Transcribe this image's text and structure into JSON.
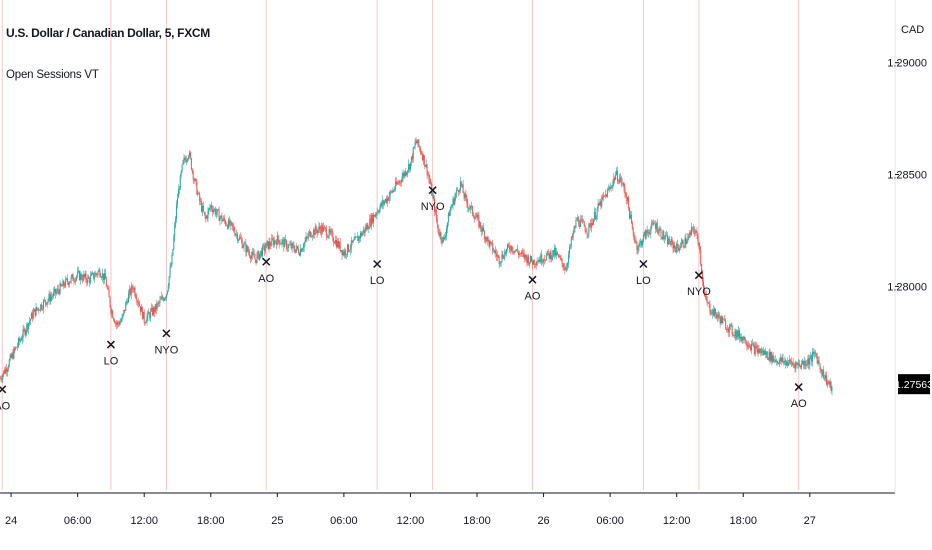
{
  "header": {
    "title": "U.S. Dollar / Canadian Dollar, 5, FXCM",
    "indicator": "Open Sessions VT",
    "currency": "CAD"
  },
  "colors": {
    "up": "#26a69a",
    "down": "#ef5350",
    "session_line": "#f7c6c6",
    "marker": "#131722",
    "axis": "#131722",
    "price_tag_bg": "#000000",
    "price_tag_text": "#ffffff"
  },
  "chart_data": {
    "type": "candlestick",
    "title": "U.S. Dollar / Canadian Dollar, 5, FXCM",
    "x_tick_labels": [
      "24",
      "06:00",
      "12:00",
      "18:00",
      "25",
      "06:00",
      "12:00",
      "18:00",
      "26",
      "06:00",
      "12:00",
      "18:00",
      "27"
    ],
    "x_ticks_hours": [
      0,
      6,
      12,
      18,
      24,
      30,
      36,
      42,
      48,
      54,
      60,
      66,
      72
    ],
    "x_range_hours": [
      -1.0,
      79.5
    ],
    "y_tick_labels": [
      "1.29000",
      "1.28500",
      "1.28000"
    ],
    "y_ticks": [
      1.29,
      1.285,
      1.28
    ],
    "ylim": [
      1.2709,
      1.2928
    ],
    "last_price": "1.27563",
    "last_price_value": 1.27563,
    "grid": false,
    "price_path": [
      [
        -1.0,
        1.2759
      ],
      [
        -0.5,
        1.2763
      ],
      [
        0.0,
        1.2768
      ],
      [
        1.0,
        1.2778
      ],
      [
        2.0,
        1.2788
      ],
      [
        3.0,
        1.2793
      ],
      [
        4.0,
        1.2797
      ],
      [
        5.0,
        1.2802
      ],
      [
        6.0,
        1.2805
      ],
      [
        7.0,
        1.2803
      ],
      [
        8.0,
        1.2807
      ],
      [
        8.5,
        1.2803
      ],
      [
        9.0,
        1.279
      ],
      [
        9.5,
        1.2783
      ],
      [
        10.0,
        1.2785
      ],
      [
        10.5,
        1.2795
      ],
      [
        11.0,
        1.28
      ],
      [
        11.5,
        1.2793
      ],
      [
        12.0,
        1.2785
      ],
      [
        13.0,
        1.279
      ],
      [
        14.0,
        1.2797
      ],
      [
        14.5,
        1.2812
      ],
      [
        15.0,
        1.284
      ],
      [
        15.5,
        1.2855
      ],
      [
        16.0,
        1.286
      ],
      [
        16.5,
        1.2848
      ],
      [
        17.0,
        1.2838
      ],
      [
        17.5,
        1.283
      ],
      [
        18.0,
        1.2836
      ],
      [
        19.0,
        1.283
      ],
      [
        20.0,
        1.2826
      ],
      [
        21.0,
        1.2818
      ],
      [
        22.0,
        1.2812
      ],
      [
        23.0,
        1.2818
      ],
      [
        24.0,
        1.2821
      ],
      [
        25.0,
        1.2818
      ],
      [
        26.0,
        1.2816
      ],
      [
        27.0,
        1.2824
      ],
      [
        28.0,
        1.2826
      ],
      [
        29.0,
        1.2822
      ],
      [
        30.0,
        1.2815
      ],
      [
        31.0,
        1.282
      ],
      [
        32.0,
        1.2826
      ],
      [
        33.0,
        1.2834
      ],
      [
        34.0,
        1.284
      ],
      [
        35.0,
        1.2847
      ],
      [
        36.0,
        1.2855
      ],
      [
        36.5,
        1.2865
      ],
      [
        37.0,
        1.286
      ],
      [
        37.5,
        1.2852
      ],
      [
        38.0,
        1.284
      ],
      [
        38.5,
        1.2825
      ],
      [
        39.0,
        1.282
      ],
      [
        39.5,
        1.2833
      ],
      [
        40.0,
        1.284
      ],
      [
        40.5,
        1.2846
      ],
      [
        41.0,
        1.2838
      ],
      [
        42.0,
        1.283
      ],
      [
        43.0,
        1.282
      ],
      [
        44.0,
        1.2812
      ],
      [
        45.0,
        1.2818
      ],
      [
        46.0,
        1.2814
      ],
      [
        47.0,
        1.2811
      ],
      [
        48.0,
        1.2813
      ],
      [
        49.0,
        1.2815
      ],
      [
        50.0,
        1.2808
      ],
      [
        50.5,
        1.282
      ],
      [
        51.0,
        1.283
      ],
      [
        52.0,
        1.2825
      ],
      [
        53.0,
        1.2836
      ],
      [
        54.0,
        1.2844
      ],
      [
        54.5,
        1.285
      ],
      [
        55.0,
        1.2847
      ],
      [
        55.5,
        1.284
      ],
      [
        56.0,
        1.2825
      ],
      [
        56.5,
        1.2817
      ],
      [
        57.0,
        1.2822
      ],
      [
        58.0,
        1.2828
      ],
      [
        59.0,
        1.2821
      ],
      [
        60.0,
        1.2817
      ],
      [
        61.0,
        1.2821
      ],
      [
        61.5,
        1.2826
      ],
      [
        62.0,
        1.282
      ],
      [
        62.5,
        1.2795
      ],
      [
        63.0,
        1.279
      ],
      [
        64.0,
        1.2785
      ],
      [
        65.0,
        1.278
      ],
      [
        66.0,
        1.2777
      ],
      [
        67.0,
        1.2772
      ],
      [
        68.0,
        1.277
      ],
      [
        69.0,
        1.2767
      ],
      [
        70.0,
        1.2766
      ],
      [
        71.0,
        1.2765
      ],
      [
        72.0,
        1.2767
      ],
      [
        72.5,
        1.277
      ],
      [
        73.0,
        1.2763
      ],
      [
        73.5,
        1.2758
      ],
      [
        74.0,
        1.2754
      ]
    ],
    "session_markers": [
      {
        "label": "AO",
        "hour": -0.8,
        "price": 1.2754
      },
      {
        "label": "LO",
        "hour": 9.0,
        "price": 1.2774
      },
      {
        "label": "NYO",
        "hour": 14.0,
        "price": 1.2779
      },
      {
        "label": "AO",
        "hour": 23.0,
        "price": 1.2811
      },
      {
        "label": "LO",
        "hour": 33.0,
        "price": 1.281
      },
      {
        "label": "NYO",
        "hour": 38.0,
        "price": 1.2843
      },
      {
        "label": "AO",
        "hour": 47.0,
        "price": 1.2803
      },
      {
        "label": "LO",
        "hour": 57.0,
        "price": 1.281
      },
      {
        "label": "NYO",
        "hour": 62.0,
        "price": 1.2805
      },
      {
        "label": "AO",
        "hour": 71.0,
        "price": 1.2755
      }
    ]
  }
}
